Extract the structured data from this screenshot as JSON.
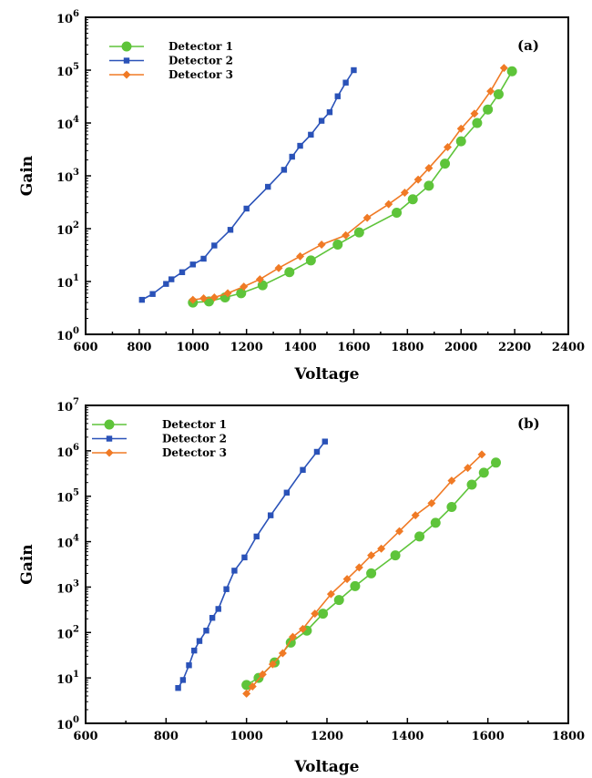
{
  "chart_data": [
    {
      "type": "line",
      "panel_label": "(a)",
      "xlabel": "Voltage",
      "ylabel": "Gain",
      "xlim": [
        600,
        2400
      ],
      "xticks": [
        600,
        800,
        1000,
        1200,
        1400,
        1600,
        1800,
        2000,
        2200,
        2400
      ],
      "ylog": true,
      "yexp_range": [
        0,
        6
      ],
      "grid": false,
      "legend_position": "top-left",
      "series": [
        {
          "name": "Detector 1",
          "color": "#5ec43a",
          "marker": "circle",
          "x": [
            1000,
            1060,
            1120,
            1180,
            1260,
            1360,
            1440,
            1540,
            1620,
            1760,
            1820,
            1880,
            1940,
            2000,
            2060,
            2100,
            2140,
            2190
          ],
          "y": [
            4,
            4.2,
            5,
            6,
            8.5,
            15,
            25,
            50,
            85,
            200,
            360,
            650,
            1700,
            4500,
            10000,
            18000,
            35000,
            95000
          ]
        },
        {
          "name": "Detector 2",
          "color": "#2a52b8",
          "marker": "square",
          "x": [
            810,
            850,
            900,
            920,
            960,
            1000,
            1040,
            1080,
            1140,
            1200,
            1280,
            1340,
            1370,
            1400,
            1440,
            1480,
            1510,
            1540,
            1570,
            1600
          ],
          "y": [
            4.5,
            5.8,
            9,
            11,
            15,
            21,
            27,
            48,
            95,
            240,
            620,
            1300,
            2300,
            3700,
            6000,
            11000,
            16000,
            32000,
            58000,
            100000
          ]
        },
        {
          "name": "Detector 3",
          "color": "#f07a25",
          "marker": "diamond",
          "x": [
            1000,
            1040,
            1080,
            1130,
            1190,
            1250,
            1320,
            1400,
            1480,
            1570,
            1650,
            1730,
            1790,
            1840,
            1880,
            1950,
            2000,
            2050,
            2110,
            2160
          ],
          "y": [
            4.5,
            4.8,
            5,
            6,
            8,
            11,
            18,
            30,
            50,
            75,
            160,
            290,
            480,
            850,
            1400,
            3500,
            7800,
            15000,
            40000,
            110000
          ]
        }
      ]
    },
    {
      "type": "line",
      "panel_label": "(b)",
      "xlabel": "Voltage",
      "ylabel": "Gain",
      "xlim": [
        600,
        1800
      ],
      "xticks": [
        600,
        800,
        1000,
        1200,
        1400,
        1600,
        1800
      ],
      "ylog": true,
      "yexp_range": [
        0,
        7
      ],
      "grid": false,
      "legend_position": "top-left",
      "series": [
        {
          "name": "Detector 1",
          "color": "#5ec43a",
          "marker": "circle",
          "x": [
            1000,
            1030,
            1070,
            1110,
            1150,
            1190,
            1230,
            1270,
            1310,
            1370,
            1430,
            1470,
            1510,
            1560,
            1590,
            1620
          ],
          "y": [
            7,
            10,
            22,
            60,
            110,
            260,
            520,
            1050,
            2000,
            5000,
            13000,
            26000,
            58000,
            180000,
            330000,
            550000
          ]
        },
        {
          "name": "Detector 2",
          "color": "#2a52b8",
          "marker": "square",
          "x": [
            830,
            842,
            857,
            870,
            883,
            900,
            915,
            930,
            950,
            970,
            995,
            1025,
            1060,
            1100,
            1140,
            1175,
            1195
          ],
          "y": [
            6,
            9,
            19,
            40,
            65,
            110,
            210,
            330,
            900,
            2300,
            4500,
            13000,
            38000,
            120000,
            380000,
            950000,
            1600000
          ]
        },
        {
          "name": "Detector 3",
          "color": "#f07a25",
          "marker": "diamond",
          "x": [
            1000,
            1015,
            1040,
            1065,
            1090,
            1115,
            1140,
            1170,
            1210,
            1250,
            1280,
            1310,
            1335,
            1380,
            1420,
            1460,
            1510,
            1550,
            1585
          ],
          "y": [
            4.5,
            6.5,
            12,
            20,
            35,
            80,
            120,
            260,
            700,
            1500,
            2700,
            5000,
            7000,
            17000,
            38000,
            70000,
            220000,
            420000,
            830000
          ]
        }
      ]
    }
  ]
}
